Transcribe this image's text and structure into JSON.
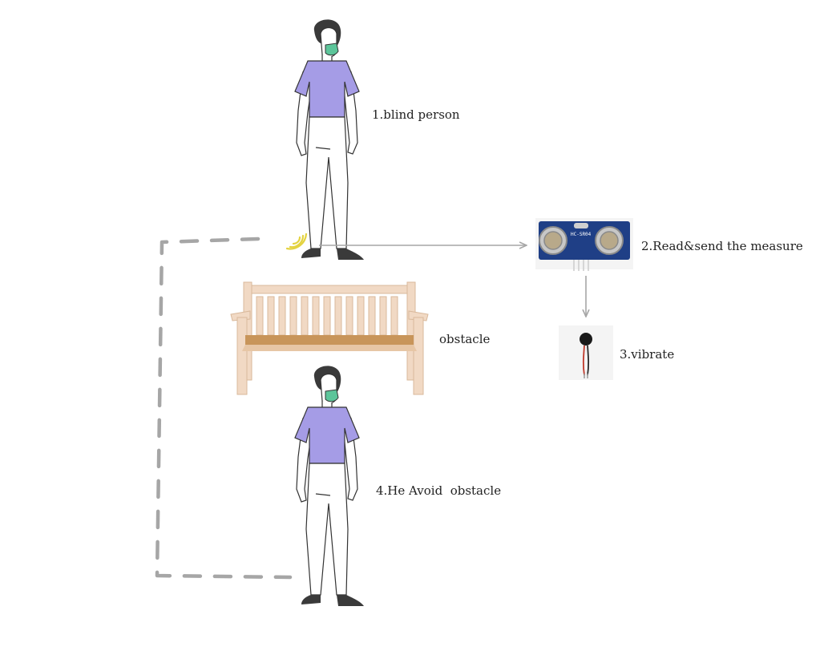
{
  "labels": {
    "step1": "1.blind person",
    "step2": "2.Read&send the measure",
    "step3": "3.vibrate",
    "obstacle": "obstacle",
    "step4": "4.He Avoid  obstacle"
  },
  "sensor": {
    "model_text": "HC-SR04"
  },
  "colors": {
    "shirt": "#a59ce6",
    "mask": "#5cc59a",
    "hair": "#3a3a3a",
    "shoe": "#3a3a3a",
    "skin": "#ffffff",
    "bench_light": "#f1d9c4",
    "bench_seat": "#c8955a",
    "path": "#a6a6a6",
    "arrow": "#a6a6a6",
    "sensor_board": "#1f3f86",
    "signal": "#e4d341"
  },
  "icons": {
    "person": "person-icon",
    "bench": "bench-icon",
    "sensor": "ultrasonic-sensor-icon",
    "motor": "vibration-motor-icon",
    "signal": "signal-waves-icon"
  }
}
